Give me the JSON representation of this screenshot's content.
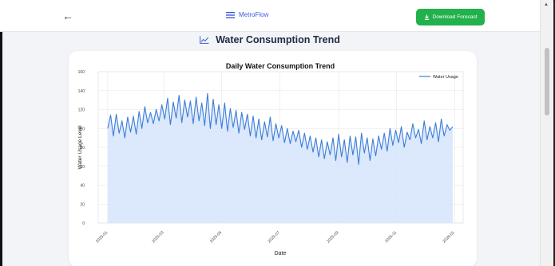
{
  "header": {
    "back_label": "←",
    "brand_name": "MetroFlow",
    "download_label": "Download Forecast"
  },
  "page": {
    "title": "Water Consumption Trend"
  },
  "colors": {
    "brand": "#3b5bdb",
    "download": "#22b14c",
    "line": "#3b7dd8",
    "fill": "#d6e4fb"
  },
  "icons": {
    "back": "arrow-left-icon",
    "brand": "menu-lines-icon",
    "download": "download-icon",
    "heading": "line-chart-icon"
  },
  "chart_data": {
    "type": "area",
    "title": "Daily Water Consumption Trend",
    "xlabel": "Date",
    "ylabel": "Water Usage Level",
    "legend": "Water Usage",
    "legend_position": "top-right",
    "grid": true,
    "ylim": [
      0,
      160
    ],
    "yticks": [
      "0",
      "20",
      "40",
      "60",
      "80",
      "100",
      "120",
      "140",
      "160"
    ],
    "xlim": [
      "2024-12-22",
      "2026-01-10"
    ],
    "xticks": [
      {
        "date": "2025-01-01",
        "label": "2025-01"
      },
      {
        "date": "2025-03-01",
        "label": "2025-03"
      },
      {
        "date": "2025-05-01",
        "label": "2025-05"
      },
      {
        "date": "2025-07-01",
        "label": "2025-07"
      },
      {
        "date": "2025-09-01",
        "label": "2025-09"
      },
      {
        "date": "2025-11-01",
        "label": "2025-11"
      },
      {
        "date": "2026-01-01",
        "label": "2026-01"
      }
    ],
    "series": [
      {
        "name": "Water Usage",
        "dates": [
          "2025-01-01",
          "2025-01-04",
          "2025-01-07",
          "2025-01-10",
          "2025-01-13",
          "2025-01-16",
          "2025-01-19",
          "2025-01-22",
          "2025-01-25",
          "2025-01-28",
          "2025-01-31",
          "2025-02-03",
          "2025-02-06",
          "2025-02-09",
          "2025-02-12",
          "2025-02-15",
          "2025-02-18",
          "2025-02-21",
          "2025-02-24",
          "2025-02-27",
          "2025-03-02",
          "2025-03-05",
          "2025-03-08",
          "2025-03-11",
          "2025-03-14",
          "2025-03-17",
          "2025-03-20",
          "2025-03-23",
          "2025-03-26",
          "2025-03-29",
          "2025-04-01",
          "2025-04-04",
          "2025-04-07",
          "2025-04-10",
          "2025-04-13",
          "2025-04-16",
          "2025-04-19",
          "2025-04-22",
          "2025-04-25",
          "2025-04-28",
          "2025-05-01",
          "2025-05-04",
          "2025-05-07",
          "2025-05-10",
          "2025-05-13",
          "2025-05-16",
          "2025-05-19",
          "2025-05-22",
          "2025-05-25",
          "2025-05-28",
          "2025-05-31",
          "2025-06-03",
          "2025-06-06",
          "2025-06-09",
          "2025-06-12",
          "2025-06-15",
          "2025-06-18",
          "2025-06-21",
          "2025-06-24",
          "2025-06-27",
          "2025-06-30",
          "2025-07-03",
          "2025-07-06",
          "2025-07-09",
          "2025-07-12",
          "2025-07-15",
          "2025-07-18",
          "2025-07-21",
          "2025-07-24",
          "2025-07-27",
          "2025-07-30",
          "2025-08-02",
          "2025-08-05",
          "2025-08-08",
          "2025-08-11",
          "2025-08-14",
          "2025-08-17",
          "2025-08-20",
          "2025-08-23",
          "2025-08-26",
          "2025-08-29",
          "2025-09-01",
          "2025-09-04",
          "2025-09-07",
          "2025-09-10",
          "2025-09-13",
          "2025-09-16",
          "2025-09-19",
          "2025-09-22",
          "2025-09-25",
          "2025-09-28",
          "2025-10-01",
          "2025-10-04",
          "2025-10-07",
          "2025-10-10",
          "2025-10-13",
          "2025-10-16",
          "2025-10-19",
          "2025-10-22",
          "2025-10-25",
          "2025-10-28",
          "2025-10-31",
          "2025-11-03",
          "2025-11-06",
          "2025-11-09",
          "2025-11-12",
          "2025-11-15",
          "2025-11-18",
          "2025-11-21",
          "2025-11-24",
          "2025-11-27",
          "2025-11-30",
          "2025-12-03",
          "2025-12-06",
          "2025-12-09",
          "2025-12-12",
          "2025-12-15",
          "2025-12-18",
          "2025-12-21",
          "2025-12-24",
          "2025-12-27",
          "2025-12-30"
        ],
        "values": [
          100,
          114,
          92,
          115,
          95,
          108,
          90,
          112,
          96,
          113,
          94,
          118,
          100,
          123,
          106,
          117,
          105,
          120,
          108,
          125,
          110,
          132,
          104,
          128,
          111,
          135,
          106,
          130,
          112,
          129,
          105,
          133,
          108,
          127,
          103,
          137,
          100,
          131,
          104,
          125,
          100,
          127,
          97,
          121,
          101,
          119,
          95,
          117,
          99,
          115,
          92,
          113,
          90,
          110,
          88,
          107,
          91,
          112,
          87,
          105,
          90,
          103,
          85,
          100,
          84,
          97,
          86,
          98,
          80,
          95,
          78,
          92,
          75,
          90,
          70,
          88,
          68,
          86,
          72,
          90,
          66,
          94,
          70,
          88,
          64,
          92,
          72,
          91,
          62,
          95,
          74,
          90,
          66,
          89,
          71,
          92,
          78,
          95,
          76,
          100,
          82,
          98,
          85,
          102,
          80,
          96,
          88,
          105,
          90,
          99,
          84,
          108,
          88,
          102,
          90,
          106,
          86,
          110,
          92,
          104,
          98,
          102
        ]
      }
    ]
  }
}
